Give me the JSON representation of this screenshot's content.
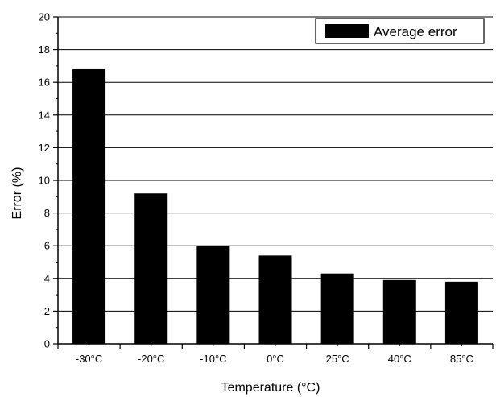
{
  "chart_data": {
    "type": "bar",
    "categories": [
      "-30°C",
      "-20°C",
      "-10°C",
      "0°C",
      "25°C",
      "40°C",
      "85°C"
    ],
    "series": [
      {
        "name": "Average error",
        "values": [
          16.8,
          9.2,
          6.0,
          5.4,
          4.3,
          3.9,
          3.8
        ]
      }
    ],
    "xlabel": "Temperature (°C)",
    "ylabel": "Error (%)",
    "ylim": [
      0,
      20
    ],
    "yticks": [
      0,
      2,
      4,
      6,
      8,
      10,
      12,
      14,
      16,
      18,
      20
    ],
    "grid": "horizontal",
    "legend_position": "top-right",
    "colors": {
      "bar": "#000000",
      "grid": "#000000",
      "background": "#ffffff"
    }
  }
}
